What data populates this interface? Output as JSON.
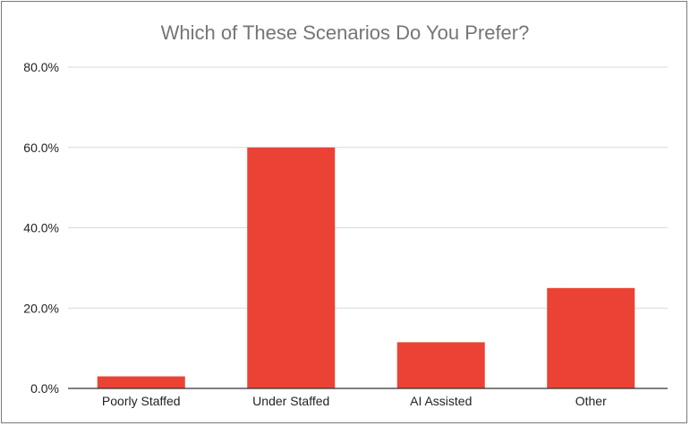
{
  "chart_data": {
    "type": "bar",
    "title": "Which of These Scenarios Do You Prefer?",
    "xlabel": "",
    "ylabel": "",
    "categories": [
      "Poorly Staffed",
      "Under Staffed",
      "AI Assisted",
      "Other"
    ],
    "values": [
      3.0,
      60.0,
      11.5,
      25.0
    ],
    "value_unit": "%",
    "ylim": [
      0,
      80
    ],
    "yticks": [
      0,
      20,
      40,
      60,
      80
    ],
    "ytick_labels": [
      "0.0%",
      "20.0%",
      "40.0%",
      "60.0%",
      "80.0%"
    ],
    "grid": true,
    "legend": "none",
    "bar_color": "#ea4335",
    "gridline_color": "#d9d9d9",
    "axis_color": "#333333"
  }
}
